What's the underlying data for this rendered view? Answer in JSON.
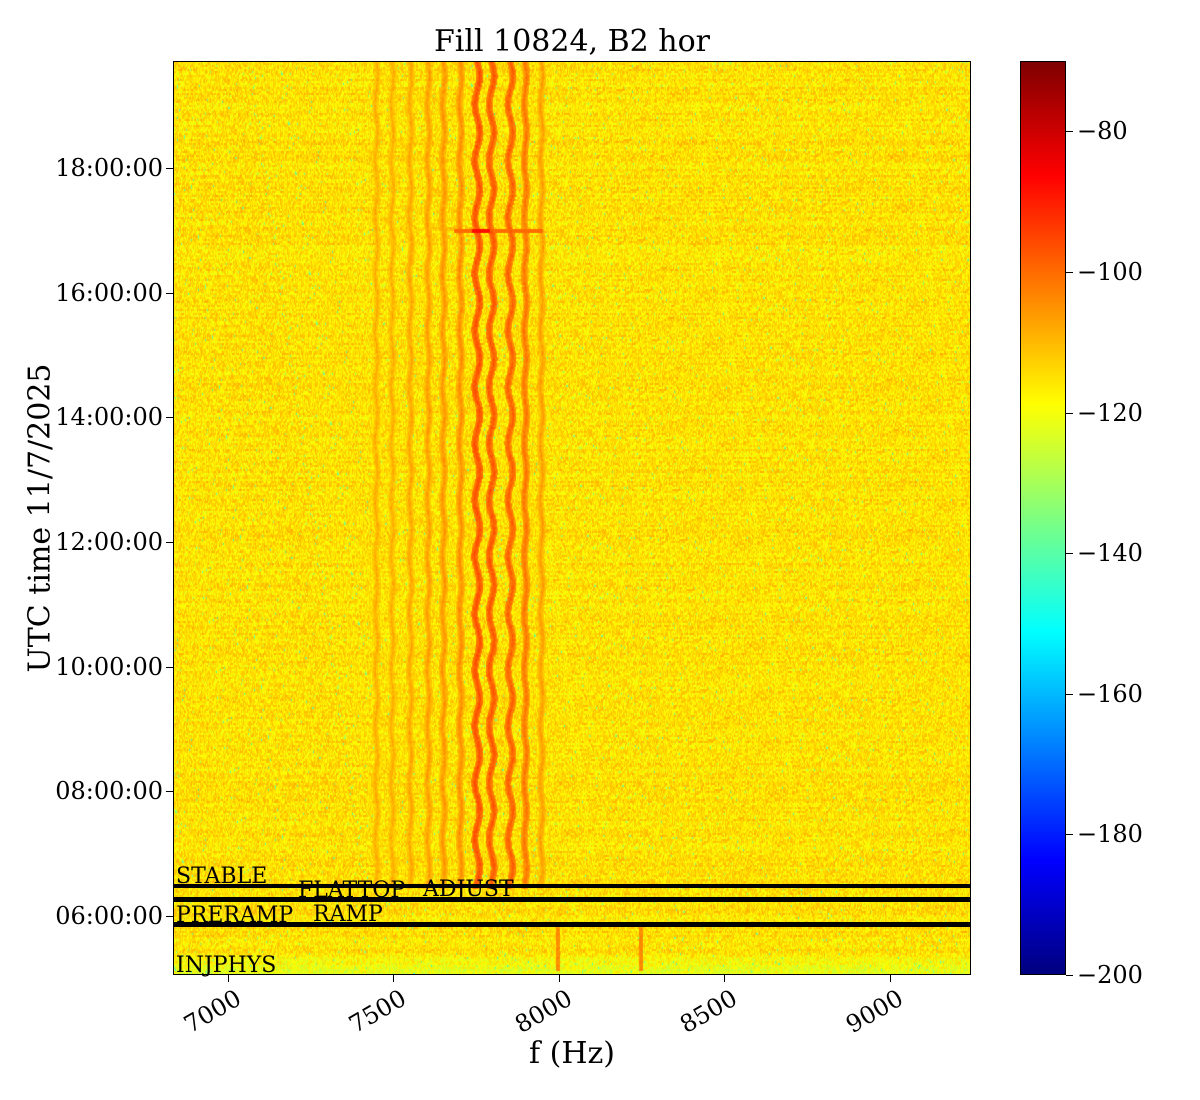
{
  "chart_data": {
    "type": "heatmap",
    "title": "Fill 10824, B2 hor",
    "xlabel": "f (Hz)",
    "ylabel": "UTC time 11/7/2025",
    "xlim": [
      6834,
      9245
    ],
    "ylim_hours": [
      5.05,
      19.72
    ],
    "xticks": [
      7000,
      7500,
      8000,
      8500,
      9000
    ],
    "xtick_labels": [
      "7000",
      "7500",
      "8000",
      "8500",
      "9000"
    ],
    "yticks_hours": [
      6,
      8,
      10,
      12,
      14,
      16,
      18
    ],
    "ytick_labels": [
      "06:00:00",
      "08:00:00",
      "10:00:00",
      "12:00:00",
      "14:00:00",
      "16:00:00",
      "18:00:00"
    ],
    "colorbar": {
      "range": [
        -200,
        -70
      ],
      "ticks": [
        -80,
        -100,
        -120,
        -140,
        -160,
        -180,
        -200
      ],
      "tick_labels": [
        "−80",
        "−100",
        "−120",
        "−140",
        "−160",
        "−180",
        "−200"
      ],
      "colormap": "jet"
    },
    "background_level_db": -115,
    "spectral_lines_hz": [
      {
        "f": 7447,
        "level": -108
      },
      {
        "f": 7495,
        "level": -108
      },
      {
        "f": 7550,
        "level": -107
      },
      {
        "f": 7604,
        "level": -106
      },
      {
        "f": 7650,
        "level": -105
      },
      {
        "f": 7701,
        "level": -104
      },
      {
        "f": 7752,
        "level": -96
      },
      {
        "f": 7795,
        "level": -97
      },
      {
        "f": 7852,
        "level": -98
      },
      {
        "f": 7897,
        "level": -101
      },
      {
        "f": 7946,
        "level": -106
      }
    ],
    "lines_start_hour": 6.45,
    "event_hour": 17.02,
    "beam_modes": [
      {
        "label": "INJPHYS",
        "hour": 5.05
      },
      {
        "label": "PRERAMP",
        "hour": 5.85
      },
      {
        "label": "RAMP",
        "hour": 5.87
      },
      {
        "label": "FLATTOP",
        "hour": 6.25
      },
      {
        "label": "ADJUST",
        "hour": 6.27
      },
      {
        "label": "STABLE",
        "hour": 6.48
      }
    ]
  }
}
